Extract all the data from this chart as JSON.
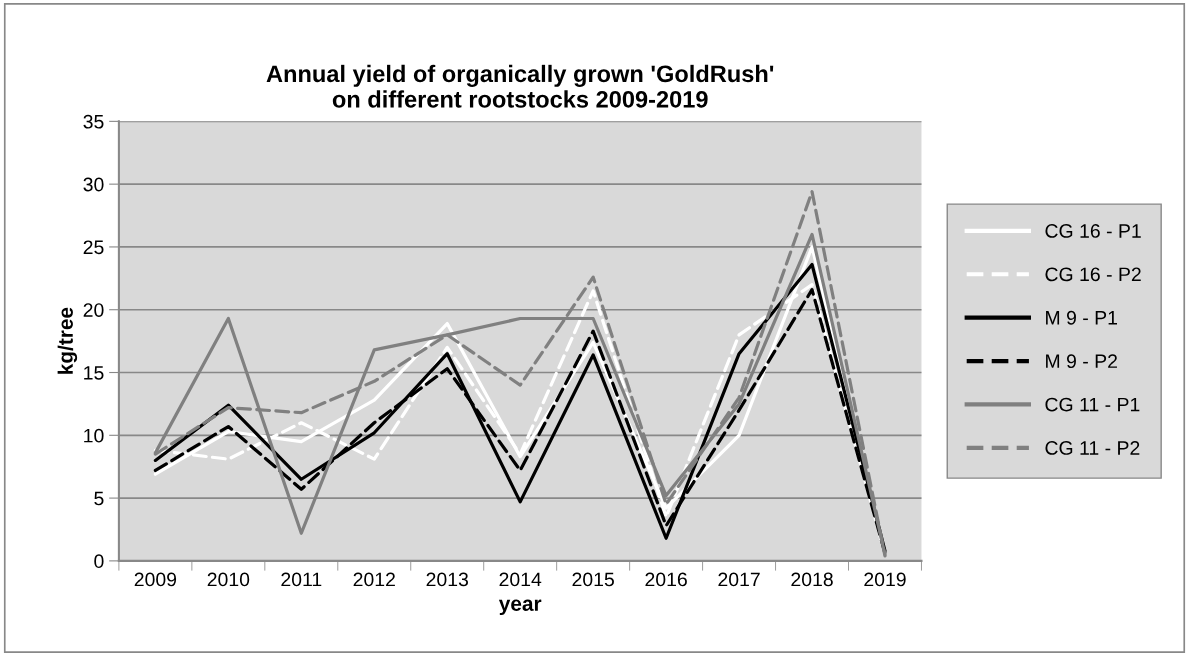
{
  "chart_data": {
    "type": "line",
    "title": "Annual yield of organically grown 'GoldRush'\non different rootstocks 2009-2019",
    "xlabel": "year",
    "ylabel": "kg/tree",
    "categories": [
      "2009",
      "2010",
      "2011",
      "2012",
      "2013",
      "2014",
      "2015",
      "2016",
      "2017",
      "2018",
      "2019"
    ],
    "series": [
      {
        "name": "CG 16 - P1",
        "color": "#ffffff",
        "line_style": "solid",
        "values": [
          6.9,
          10.3,
          9.5,
          12.8,
          18.9,
          8.3,
          17.4,
          4.2,
          10.0,
          25.0,
          0.6
        ]
      },
      {
        "name": "CG 16 - P2",
        "color": "#ffffff",
        "line_style": "dashed",
        "values": [
          8.8,
          8.1,
          11.0,
          8.1,
          17.0,
          8.5,
          21.5,
          3.5,
          18.0,
          22.0,
          0.5
        ]
      },
      {
        "name": "M 9 - P1",
        "color": "#000000",
        "line_style": "solid",
        "values": [
          8.0,
          12.4,
          6.5,
          10.2,
          16.5,
          4.7,
          16.4,
          1.8,
          16.5,
          23.6,
          0.8
        ]
      },
      {
        "name": "M 9 - P2",
        "color": "#000000",
        "line_style": "dashed",
        "values": [
          7.2,
          10.7,
          5.7,
          11.0,
          15.3,
          7.2,
          18.3,
          2.8,
          12.0,
          21.6,
          0.6
        ]
      },
      {
        "name": "CG 11 - P1",
        "color": "#808080",
        "line_style": "solid",
        "values": [
          8.6,
          19.3,
          2.2,
          16.8,
          18.0,
          19.3,
          19.3,
          5.2,
          12.5,
          26.0,
          0.5
        ]
      },
      {
        "name": "CG 11 - P2",
        "color": "#808080",
        "line_style": "dashed",
        "values": [
          8.5,
          12.2,
          11.8,
          14.3,
          18.0,
          14.0,
          22.6,
          4.5,
          13.0,
          29.4,
          0.4
        ]
      }
    ],
    "ylim": [
      0,
      35
    ],
    "yticks": [
      0,
      5,
      10,
      15,
      20,
      25,
      30,
      35
    ],
    "grid": "y",
    "legend": "right",
    "marker": "none"
  }
}
